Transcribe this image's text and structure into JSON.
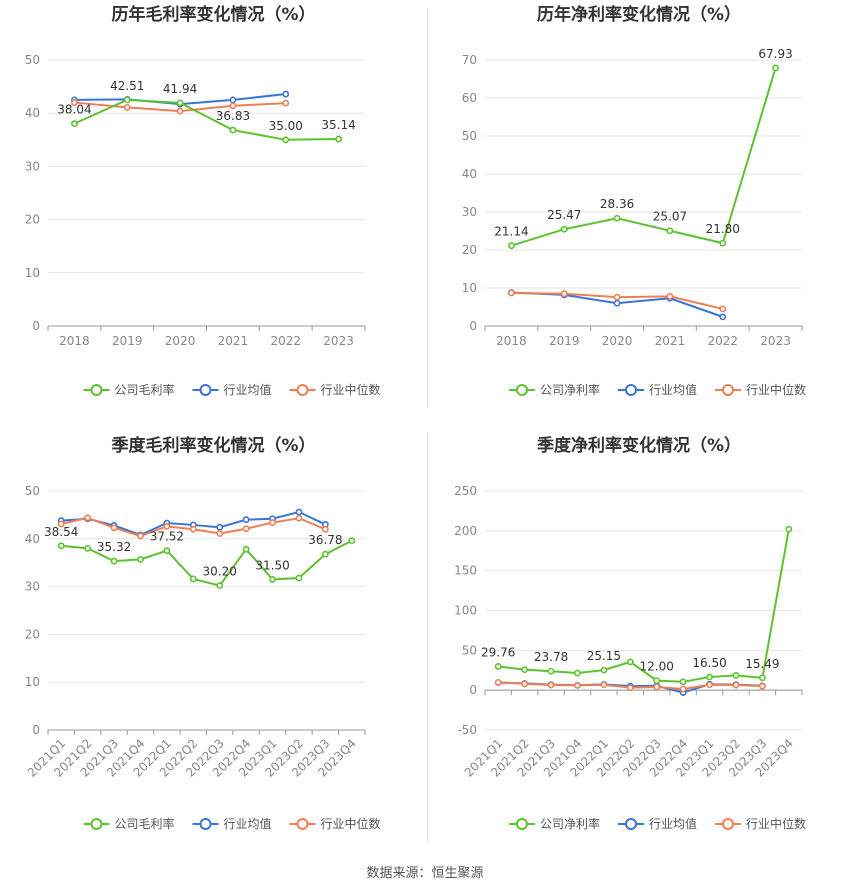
{
  "colors": {
    "company": "#5dc22f",
    "industry_avg": "#3a75d6",
    "industry_median": "#ee7f55"
  },
  "source": "数据来源：恒生聚源",
  "chart_data": [
    {
      "id": "annual-gross",
      "type": "line",
      "title": "历年毛利率变化情况（%）",
      "categories": [
        "2018",
        "2019",
        "2020",
        "2021",
        "2022",
        "2023"
      ],
      "ylim": [
        0,
        50
      ],
      "yticks": [
        0,
        10,
        20,
        30,
        40,
        50
      ],
      "series": [
        {
          "name": "公司毛利率",
          "key": "company",
          "values": [
            38.04,
            42.51,
            41.94,
            36.83,
            35.0,
            35.14
          ],
          "labels": [
            "38.04",
            "42.51",
            "41.94",
            "36.83",
            "35.00",
            "35.14"
          ]
        },
        {
          "name": "行业均值",
          "key": "industry_avg",
          "values": [
            42.5,
            42.6,
            41.7,
            42.5,
            43.6,
            null
          ]
        },
        {
          "name": "行业中位数",
          "key": "industry_median",
          "values": [
            42.0,
            41.1,
            40.4,
            41.4,
            41.9,
            null
          ]
        }
      ]
    },
    {
      "id": "annual-net",
      "type": "line",
      "title": "历年净利率变化情况（%）",
      "categories": [
        "2018",
        "2019",
        "2020",
        "2021",
        "2022",
        "2023"
      ],
      "ylim": [
        0,
        70
      ],
      "yticks": [
        0,
        10,
        20,
        30,
        40,
        50,
        60,
        70
      ],
      "series": [
        {
          "name": "公司净利率",
          "key": "company",
          "values": [
            21.14,
            25.47,
            28.36,
            25.07,
            21.8,
            67.93
          ],
          "labels": [
            "21.14",
            "25.47",
            "28.36",
            "25.07",
            "21.80",
            "67.93"
          ]
        },
        {
          "name": "行业均值",
          "key": "industry_avg",
          "values": [
            8.8,
            8.2,
            6.0,
            7.3,
            2.4,
            null
          ]
        },
        {
          "name": "行业中位数",
          "key": "industry_median",
          "values": [
            8.7,
            8.5,
            7.6,
            7.8,
            4.5,
            null
          ]
        }
      ]
    },
    {
      "id": "quarterly-gross",
      "type": "line",
      "title": "季度毛利率变化情况（%）",
      "categories": [
        "2021Q1",
        "2021Q2",
        "2021Q3",
        "2021Q4",
        "2022Q1",
        "2022Q2",
        "2022Q3",
        "2022Q4",
        "2023Q1",
        "2023Q2",
        "2023Q3",
        "2023Q4"
      ],
      "ylim": [
        0,
        50
      ],
      "yticks": [
        0,
        10,
        20,
        30,
        40,
        50
      ],
      "series": [
        {
          "name": "公司毛利率",
          "key": "company",
          "values": [
            38.54,
            38.0,
            35.32,
            35.7,
            37.52,
            31.6,
            30.2,
            37.8,
            31.5,
            31.8,
            36.78,
            39.6
          ],
          "labels": [
            "38.54",
            "",
            "35.32",
            "",
            "37.52",
            "",
            "30.20",
            "",
            "31.50",
            "",
            "36.78",
            ""
          ]
        },
        {
          "name": "行业均值",
          "key": "industry_avg",
          "values": [
            43.8,
            44.2,
            42.8,
            40.8,
            43.3,
            42.9,
            42.4,
            44.0,
            44.2,
            45.6,
            43.0,
            null
          ]
        },
        {
          "name": "行业中位数",
          "key": "industry_median",
          "values": [
            43.1,
            44.4,
            42.3,
            40.6,
            42.6,
            42.0,
            41.1,
            42.1,
            43.4,
            44.3,
            42.0,
            null
          ]
        }
      ]
    },
    {
      "id": "quarterly-net",
      "type": "line",
      "title": "季度净利率变化情况（%）",
      "categories": [
        "2021Q1",
        "2021Q2",
        "2021Q3",
        "2021Q4",
        "2022Q1",
        "2022Q2",
        "2022Q3",
        "2022Q4",
        "2023Q1",
        "2023Q2",
        "2023Q3",
        "2023Q4"
      ],
      "ylim": [
        -50,
        250
      ],
      "yticks": [
        -50,
        0,
        50,
        100,
        150,
        200,
        250
      ],
      "series": [
        {
          "name": "公司净利率",
          "key": "company",
          "values": [
            29.76,
            25.8,
            23.78,
            21.5,
            25.15,
            35.5,
            12.0,
            10.5,
            16.5,
            18.5,
            15.49,
            202.0
          ],
          "labels": [
            "29.76",
            "",
            "23.78",
            "",
            "25.15",
            "",
            "12.00",
            "",
            "16.50",
            "",
            "15.49",
            ""
          ]
        },
        {
          "name": "行业均值",
          "key": "industry_avg",
          "values": [
            9.5,
            8.5,
            7.0,
            6.2,
            7.2,
            5.0,
            5.5,
            -3.0,
            7.5,
            7.0,
            5.5,
            null
          ]
        },
        {
          "name": "行业中位数",
          "key": "industry_median",
          "values": [
            9.8,
            8.0,
            6.5,
            6.0,
            6.8,
            3.2,
            4.0,
            1.5,
            6.8,
            6.5,
            5.0,
            null
          ]
        }
      ]
    }
  ]
}
